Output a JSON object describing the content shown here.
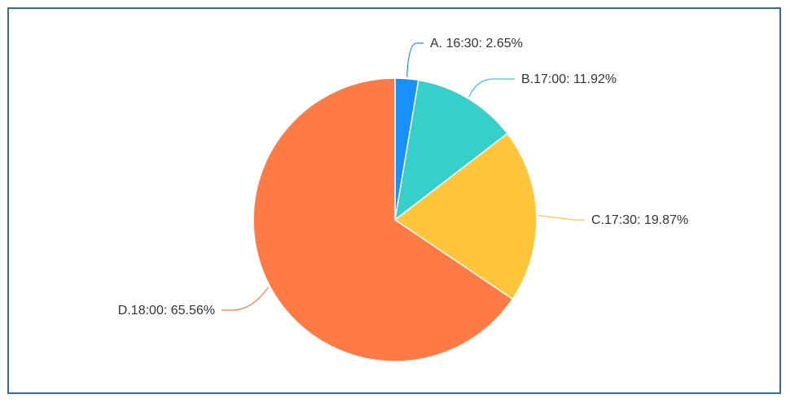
{
  "chart_data": {
    "type": "pie",
    "slices": [
      {
        "label": "A. 16:30: 2.65%",
        "name": "A. 16:30",
        "value": 2.65,
        "color": "#1890ff"
      },
      {
        "label": "B.17:00: 11.92%",
        "name": "B.17:00",
        "value": 11.92,
        "color": "#36cfc9"
      },
      {
        "label": "C.17:30: 19.87%",
        "name": "C.17:30",
        "value": 19.87,
        "color": "#ffc53d"
      },
      {
        "label": "D.18:00: 65.56%",
        "name": "D.18:00",
        "value": 65.56,
        "color": "#ff7a45"
      }
    ],
    "start": "top",
    "direction": "clockwise",
    "legend": "none"
  }
}
